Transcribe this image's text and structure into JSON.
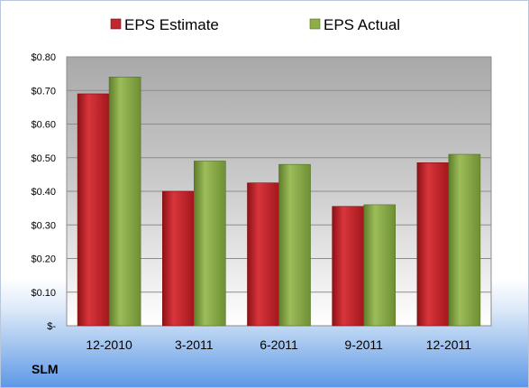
{
  "chart_data": {
    "type": "bar",
    "categories": [
      "12-2010",
      "3-2011",
      "6-2011",
      "9-2011",
      "12-2011"
    ],
    "series": [
      {
        "name": "EPS Estimate",
        "values": [
          0.69,
          0.4,
          0.425,
          0.355,
          0.485
        ],
        "color": "#c1272d"
      },
      {
        "name": "EPS Actual",
        "values": [
          0.74,
          0.49,
          0.48,
          0.36,
          0.51
        ],
        "color": "#8cad48"
      }
    ],
    "yticks": [
      "$-",
      "$0.10",
      "$0.20",
      "$0.30",
      "$0.40",
      "$0.50",
      "$0.60",
      "$0.70",
      "$0.80"
    ],
    "ylim": [
      0,
      0.8
    ],
    "grid": true,
    "legend_position": "top"
  },
  "footer": {
    "ticker": "SLM"
  }
}
